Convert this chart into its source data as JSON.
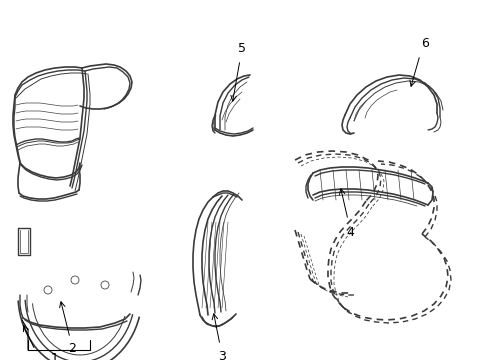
{
  "background_color": "#ffffff",
  "line_color": "#3a3a3a",
  "dashed_color": "#3a3a3a",
  "label_color": "#000000",
  "line_width": 0.7,
  "label_fontsize": 8,
  "figsize": [
    4.9,
    3.6
  ],
  "dpi": 100
}
